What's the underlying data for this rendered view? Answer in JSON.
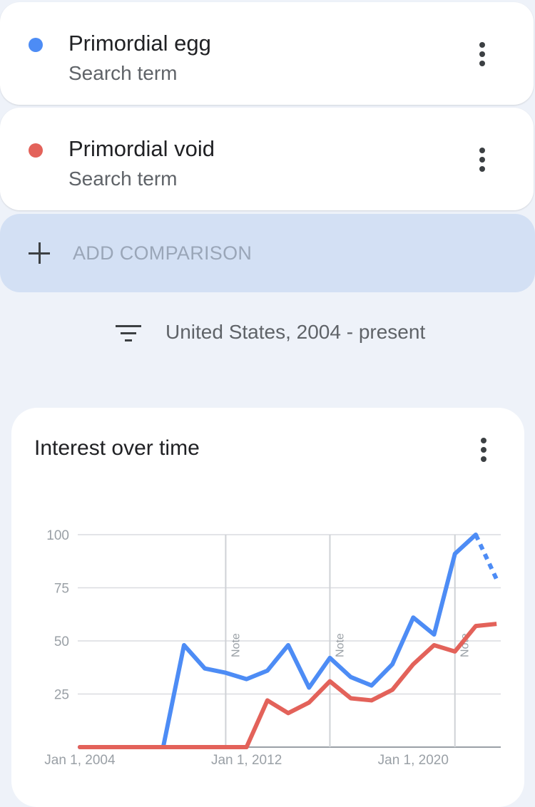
{
  "terms": [
    {
      "name": "Primordial egg",
      "sub": "Search term",
      "color": "#4d8cf5"
    },
    {
      "name": "Primordial void",
      "sub": "Search term",
      "color": "#e3625a"
    }
  ],
  "add_comparison": {
    "label": "ADD COMPARISON"
  },
  "filter": {
    "label": "United States, 2004 - present"
  },
  "chart_card": {
    "title": "Interest over time"
  },
  "chart_data": {
    "type": "line",
    "title": "Interest over time",
    "xlabel": "",
    "ylabel": "",
    "x": [
      2004,
      2005,
      2006,
      2007,
      2008,
      2009,
      2010,
      2011,
      2012,
      2013,
      2014,
      2015,
      2016,
      2017,
      2018,
      2019,
      2020,
      2021,
      2022,
      2023
    ],
    "xlim": [
      2003.9,
      2024.2
    ],
    "ylim": [
      0,
      100
    ],
    "y_ticks": [
      25,
      50,
      75,
      100
    ],
    "x_tick_labels": [
      {
        "label": "Jan 1, 2004",
        "x": 2004
      },
      {
        "label": "Jan 1, 2012",
        "x": 2012
      },
      {
        "label": "Jan 1, 2020",
        "x": 2020
      }
    ],
    "notes": [
      {
        "label": "Note",
        "x": 2011
      },
      {
        "label": "Note",
        "x": 2016
      },
      {
        "label": "Note",
        "x": 2022
      }
    ],
    "series": [
      {
        "name": "Primordial egg",
        "color": "#4d8cf5",
        "values": [
          0,
          0,
          0,
          0,
          0,
          48,
          37,
          35,
          32,
          36,
          48,
          28,
          42,
          33,
          29,
          39,
          61,
          53,
          91,
          100
        ],
        "partial_last": {
          "x": 2024,
          "value": 79
        }
      },
      {
        "name": "Primordial void",
        "color": "#e3625a",
        "values": [
          0,
          0,
          0,
          0,
          0,
          0,
          0,
          0,
          0,
          22,
          16,
          21,
          31,
          23,
          22,
          27,
          39,
          48,
          45,
          57
        ],
        "partial_last": {
          "x": 2024,
          "value": 58
        }
      }
    ],
    "grid": true,
    "legend": "none"
  }
}
